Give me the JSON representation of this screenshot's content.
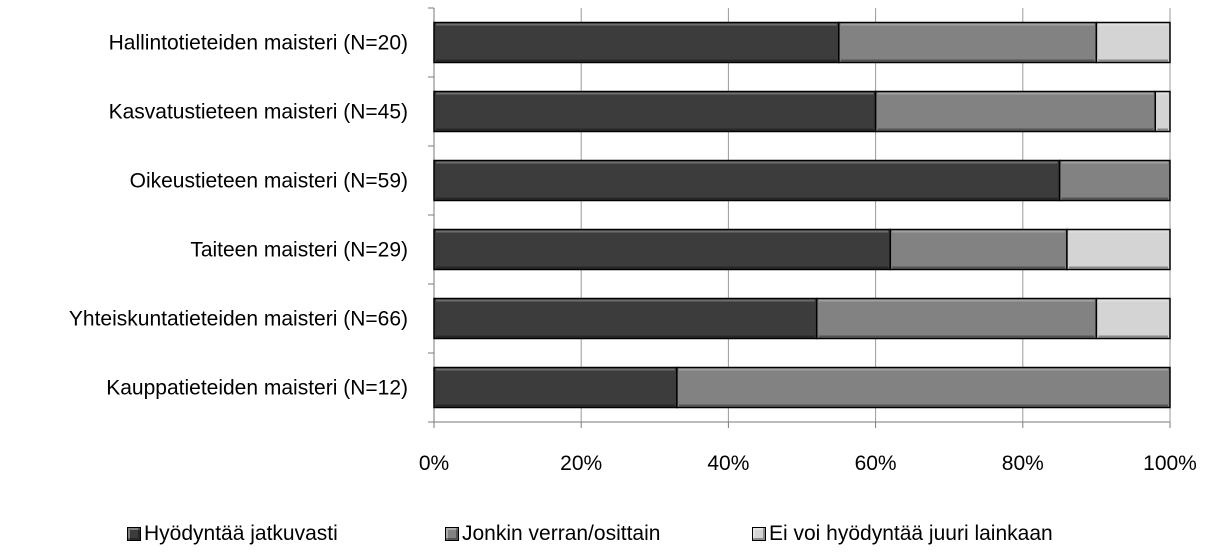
{
  "chart_data": {
    "type": "bar",
    "orientation": "horizontal",
    "stacked": "percent",
    "categories": [
      "Hallintotieteiden maisteri (N=20)",
      "Kasvatustieteen maisteri (N=45)",
      "Oikeustieteen maisteri (N=59)",
      "Taiteen maisteri (N=29)",
      "Yhteiskuntatieteiden maisteri (N=66)",
      "Kauppatieteiden maisteri (N=12)"
    ],
    "series": [
      {
        "name": "Hyödyntää jatkuvasti",
        "color": "#3c3c3c",
        "values": [
          55,
          60,
          85,
          62,
          52,
          33
        ]
      },
      {
        "name": "Jonkin verran/osittain",
        "color": "#828282",
        "values": [
          35,
          38,
          15,
          24,
          38,
          67
        ]
      },
      {
        "name": "Ei voi hyödyntää juuri lainkaan",
        "color": "#d4d4d4",
        "values": [
          10,
          2,
          0,
          14,
          10,
          0
        ]
      }
    ],
    "xticks": [
      "0%",
      "20%",
      "40%",
      "60%",
      "80%",
      "100%"
    ],
    "xlim": [
      0,
      100
    ],
    "grid": "vertical",
    "legend_position": "bottom"
  }
}
